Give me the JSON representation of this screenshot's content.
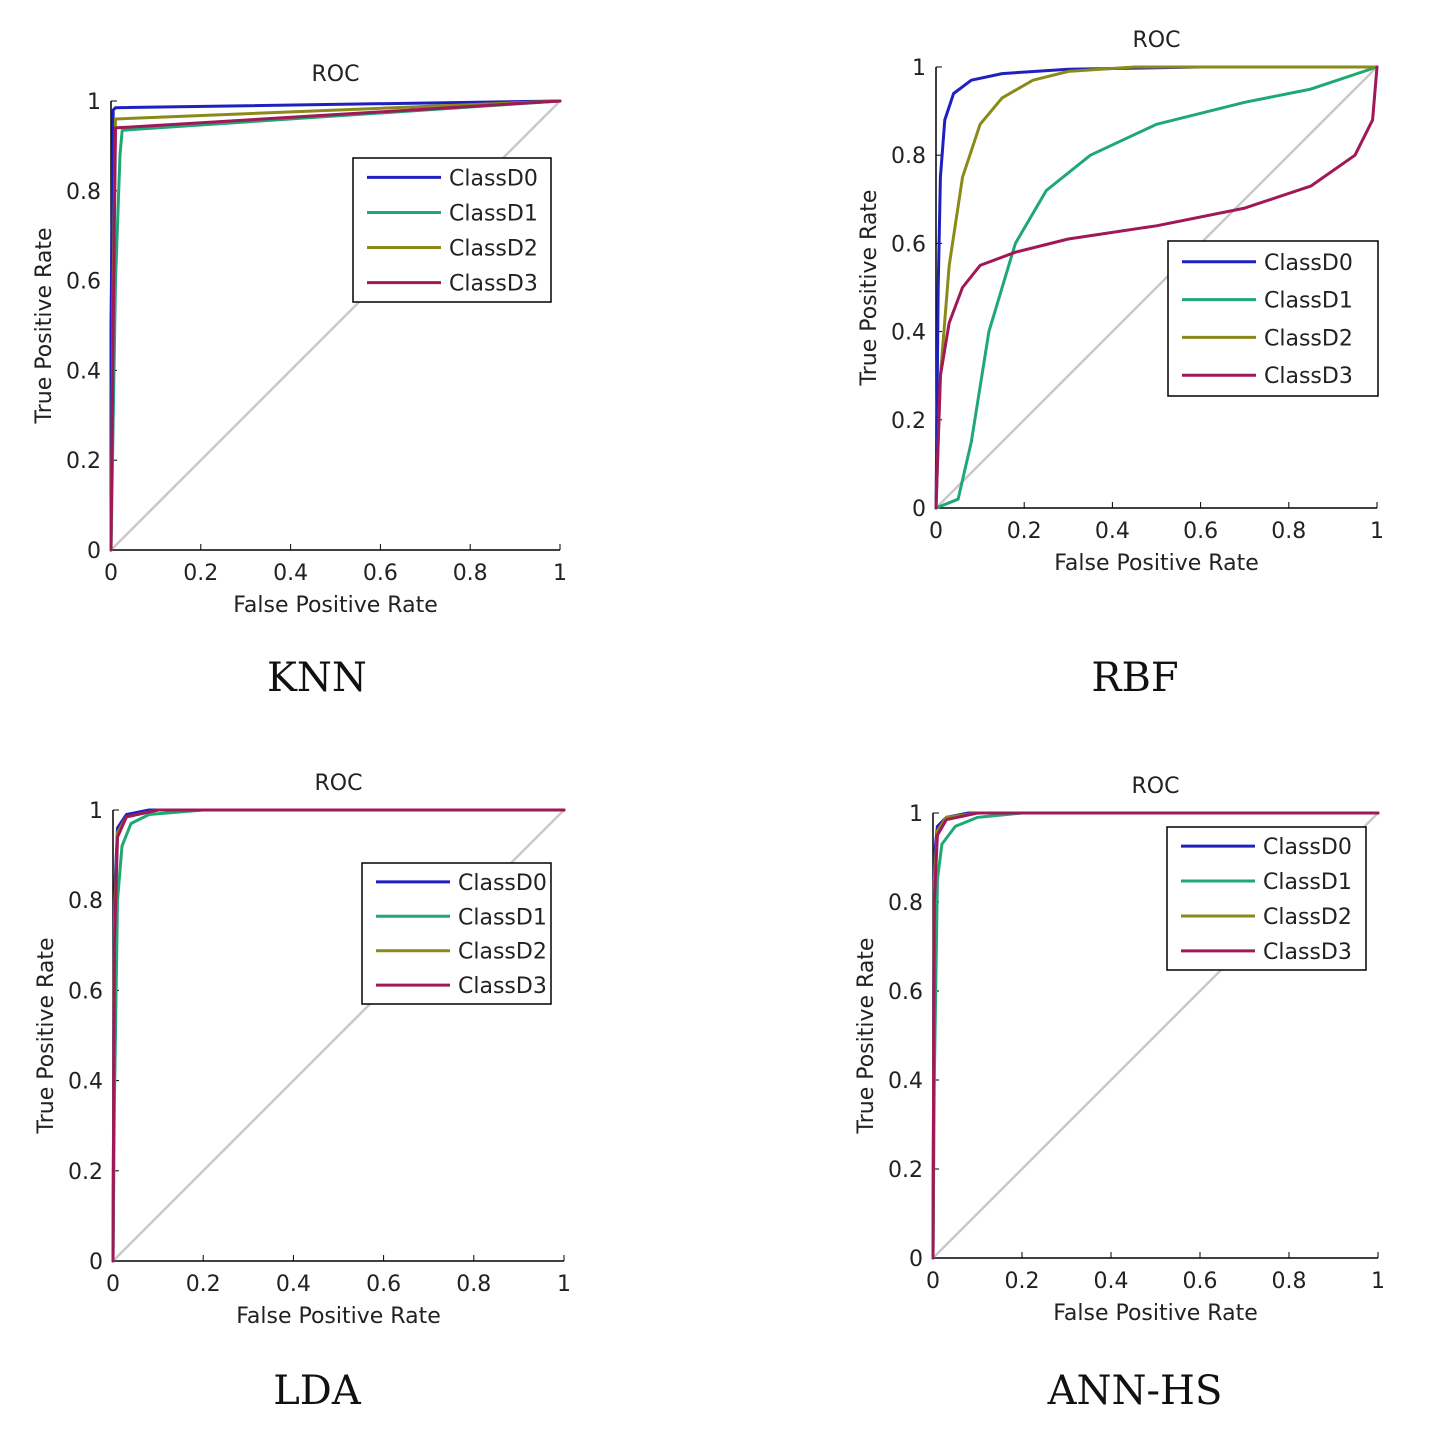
{
  "panels": [
    {
      "caption": "KNN",
      "chart_data": {
        "type": "line",
        "title": "ROC",
        "xlabel": "False Positive Rate",
        "ylabel": "True Positive Rate",
        "xlim": [
          0,
          1
        ],
        "ylim": [
          0,
          1
        ],
        "xticks": [
          "0",
          "0.2",
          "0.4",
          "0.6",
          "0.8",
          "1"
        ],
        "yticks": [
          "0",
          "0.2",
          "0.4",
          "0.6",
          "0.8",
          "1"
        ],
        "legend_position": "right-middle",
        "series": [
          {
            "name": "ClassD0",
            "color": "#2020c0",
            "x": [
              0,
              0,
              0.005,
              0.01,
              1
            ],
            "y": [
              0,
              0.5,
              0.98,
              0.985,
              1
            ]
          },
          {
            "name": "ClassD1",
            "color": "#1fa874",
            "x": [
              0,
              0.01,
              0.02,
              0.025,
              1
            ],
            "y": [
              0,
              0.6,
              0.88,
              0.935,
              1
            ]
          },
          {
            "name": "ClassD2",
            "color": "#8a8a1a",
            "x": [
              0,
              0.005,
              0.01,
              1
            ],
            "y": [
              0,
              0.6,
              0.96,
              1
            ]
          },
          {
            "name": "ClassD3",
            "color": "#a01858",
            "x": [
              0,
              0.005,
              0.01,
              1
            ],
            "y": [
              0,
              0.5,
              0.94,
              1
            ]
          }
        ]
      }
    },
    {
      "caption": "RBF",
      "chart_data": {
        "type": "line",
        "title": "ROC",
        "xlabel": "False Positive Rate",
        "ylabel": "True Positive Rate",
        "xlim": [
          0,
          1
        ],
        "ylim": [
          0,
          1
        ],
        "xticks": [
          "0",
          "0.2",
          "0.4",
          "0.6",
          "0.8",
          "1"
        ],
        "yticks": [
          "0",
          "0.2",
          "0.4",
          "0.6",
          "0.8",
          "1"
        ],
        "legend_position": "right-middle",
        "series": [
          {
            "name": "ClassD0",
            "color": "#2020c0",
            "x": [
              0,
              0.005,
              0.01,
              0.02,
              0.04,
              0.08,
              0.15,
              0.3,
              0.6,
              1
            ],
            "y": [
              0,
              0.5,
              0.75,
              0.88,
              0.94,
              0.97,
              0.985,
              0.995,
              1,
              1
            ]
          },
          {
            "name": "ClassD1",
            "color": "#1fa874",
            "x": [
              0,
              0.05,
              0.08,
              0.12,
              0.18,
              0.25,
              0.35,
              0.5,
              0.7,
              0.85,
              1
            ],
            "y": [
              0,
              0.02,
              0.15,
              0.4,
              0.6,
              0.72,
              0.8,
              0.87,
              0.92,
              0.95,
              1
            ]
          },
          {
            "name": "ClassD2",
            "color": "#8a8a1a",
            "x": [
              0,
              0.01,
              0.03,
              0.06,
              0.1,
              0.15,
              0.22,
              0.3,
              0.45,
              1
            ],
            "y": [
              0,
              0.3,
              0.55,
              0.75,
              0.87,
              0.93,
              0.97,
              0.99,
              1,
              1
            ]
          },
          {
            "name": "ClassD3",
            "color": "#a01858",
            "x": [
              0,
              0.01,
              0.03,
              0.06,
              0.1,
              0.18,
              0.3,
              0.5,
              0.7,
              0.85,
              0.95,
              0.99,
              1
            ],
            "y": [
              0,
              0.3,
              0.42,
              0.5,
              0.55,
              0.58,
              0.61,
              0.64,
              0.68,
              0.73,
              0.8,
              0.88,
              1
            ]
          }
        ]
      }
    },
    {
      "caption": "LDA",
      "chart_data": {
        "type": "line",
        "title": "ROC",
        "xlabel": "False Positive Rate",
        "ylabel": "True Positive Rate",
        "xlim": [
          0,
          1
        ],
        "ylim": [
          0,
          1
        ],
        "xticks": [
          "0",
          "0.2",
          "0.4",
          "0.6",
          "0.8",
          "1"
        ],
        "yticks": [
          "0",
          "0.2",
          "0.4",
          "0.6",
          "0.8",
          "1"
        ],
        "legend_position": "right-middle",
        "series": [
          {
            "name": "ClassD0",
            "color": "#2020c0",
            "x": [
              0,
              0.003,
              0.01,
              0.03,
              0.08,
              1
            ],
            "y": [
              0,
              0.8,
              0.96,
              0.99,
              1,
              1
            ]
          },
          {
            "name": "ClassD1",
            "color": "#1fa874",
            "x": [
              0,
              0.003,
              0.01,
              0.02,
              0.04,
              0.08,
              0.2,
              1
            ],
            "y": [
              0,
              0.35,
              0.8,
              0.92,
              0.97,
              0.99,
              1,
              1
            ]
          },
          {
            "name": "ClassD2",
            "color": "#8a8a1a",
            "x": [
              0,
              0.003,
              0.01,
              0.03,
              0.1,
              1
            ],
            "y": [
              0,
              0.75,
              0.95,
              0.985,
              1,
              1
            ]
          },
          {
            "name": "ClassD3",
            "color": "#a01858",
            "x": [
              0,
              0.003,
              0.01,
              0.03,
              0.1,
              1
            ],
            "y": [
              0,
              0.7,
              0.94,
              0.985,
              1,
              1
            ]
          }
        ]
      }
    },
    {
      "caption": "ANN-HS",
      "chart_data": {
        "type": "line",
        "title": "ROC",
        "xlabel": "False Positive Rate",
        "ylabel": "True Positive Rate",
        "xlim": [
          0,
          1
        ],
        "ylim": [
          0,
          1
        ],
        "xticks": [
          "0",
          "0.2",
          "0.4",
          "0.6",
          "0.8",
          "1"
        ],
        "yticks": [
          "0",
          "0.2",
          "0.4",
          "0.6",
          "0.8",
          "1"
        ],
        "legend_position": "top-right",
        "series": [
          {
            "name": "ClassD0",
            "color": "#2020c0",
            "x": [
              0,
              0.003,
              0.01,
              0.03,
              0.08,
              1
            ],
            "y": [
              0,
              0.9,
              0.97,
              0.99,
              1,
              1
            ]
          },
          {
            "name": "ClassD1",
            "color": "#1fa874",
            "x": [
              0,
              0.003,
              0.01,
              0.02,
              0.05,
              0.1,
              0.2,
              1
            ],
            "y": [
              0,
              0.4,
              0.85,
              0.93,
              0.97,
              0.99,
              1,
              1
            ]
          },
          {
            "name": "ClassD2",
            "color": "#8a8a1a",
            "x": [
              0,
              0.003,
              0.01,
              0.03,
              0.1,
              1
            ],
            "y": [
              0,
              0.85,
              0.96,
              0.99,
              1,
              1
            ]
          },
          {
            "name": "ClassD3",
            "color": "#a01858",
            "x": [
              0,
              0.003,
              0.01,
              0.03,
              0.1,
              1
            ],
            "y": [
              0,
              0.8,
              0.95,
              0.985,
              1,
              1
            ]
          }
        ]
      }
    }
  ]
}
